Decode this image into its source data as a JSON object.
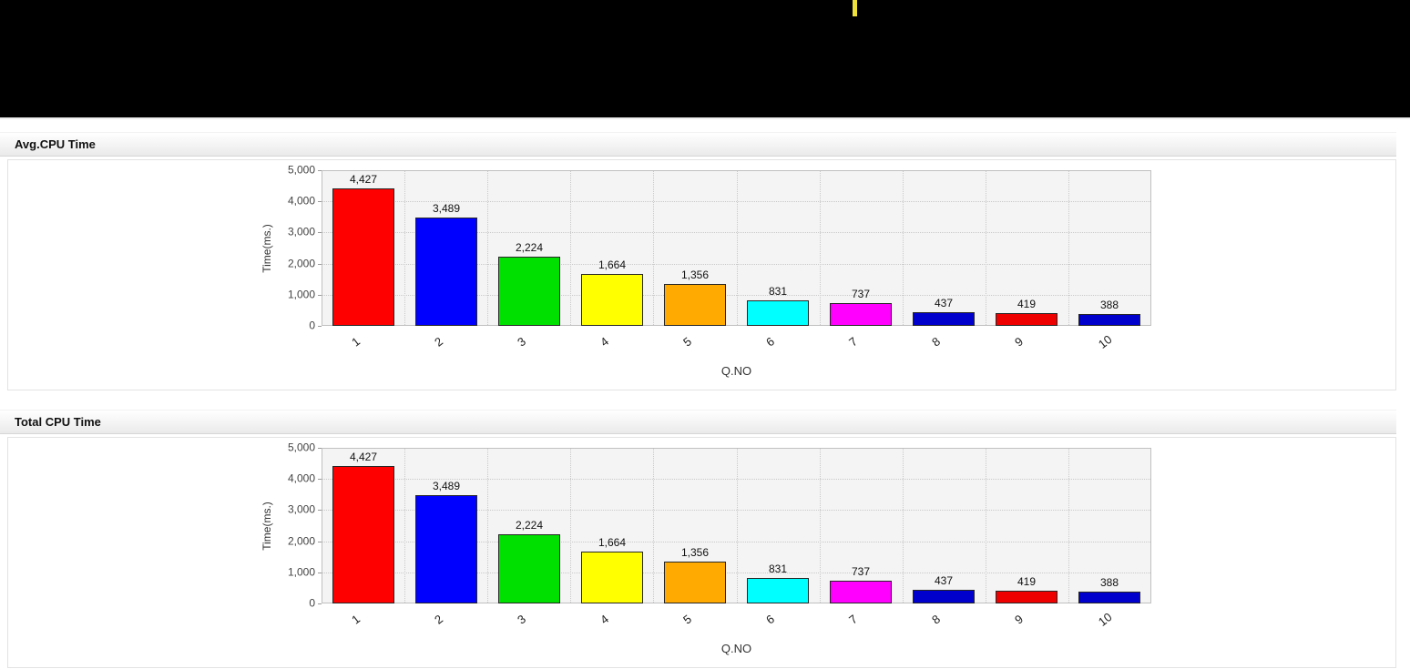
{
  "topbar": {
    "background": "#000000",
    "cursor_color": "#f0e13a"
  },
  "panels": [
    {
      "title": "Avg.CPU Time"
    },
    {
      "title": "Total CPU Time"
    }
  ],
  "chart_data": [
    {
      "type": "bar",
      "title": "Avg.CPU Time",
      "categories": [
        "1",
        "2",
        "3",
        "4",
        "5",
        "6",
        "7",
        "8",
        "9",
        "10"
      ],
      "values": [
        4427,
        3489,
        2224,
        1664,
        1356,
        831,
        737,
        437,
        419,
        388
      ],
      "value_labels": [
        "4,427",
        "3,489",
        "2,224",
        "1,664",
        "1,356",
        "831",
        "737",
        "437",
        "419",
        "388"
      ],
      "colors": [
        "#ff0000",
        "#0000ff",
        "#00e000",
        "#ffff00",
        "#ffaa00",
        "#00ffff",
        "#ff00ff",
        "#0000cc",
        "#ee0000",
        "#0000cc"
      ],
      "xlabel": "Q.NO",
      "ylabel": "Time(ms.)",
      "ylim": [
        0,
        5000
      ],
      "yticks": [
        "0",
        "1,000",
        "2,000",
        "3,000",
        "4,000",
        "5,000"
      ],
      "grid": true,
      "legend": "none"
    },
    {
      "type": "bar",
      "title": "Total CPU Time",
      "categories": [
        "1",
        "2",
        "3",
        "4",
        "5",
        "6",
        "7",
        "8",
        "9",
        "10"
      ],
      "values": [
        4427,
        3489,
        2224,
        1664,
        1356,
        831,
        737,
        437,
        419,
        388
      ],
      "value_labels": [
        "4,427",
        "3,489",
        "2,224",
        "1,664",
        "1,356",
        "831",
        "737",
        "437",
        "419",
        "388"
      ],
      "colors": [
        "#ff0000",
        "#0000ff",
        "#00e000",
        "#ffff00",
        "#ffaa00",
        "#00ffff",
        "#ff00ff",
        "#0000cc",
        "#ee0000",
        "#0000cc"
      ],
      "xlabel": "Q.NO",
      "ylabel": "Time(ms.)",
      "ylim": [
        0,
        5000
      ],
      "yticks": [
        "0",
        "1,000",
        "2,000",
        "3,000",
        "4,000",
        "5,000"
      ],
      "grid": true,
      "legend": "none"
    }
  ]
}
